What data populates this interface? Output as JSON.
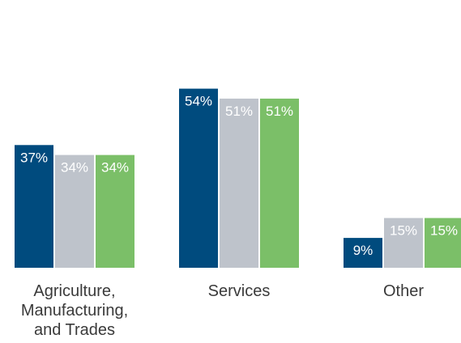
{
  "chart_data": {
    "type": "bar",
    "categories": [
      [
        "Agriculture,",
        "Manufacturing,",
        "and Trades"
      ],
      [
        "Services"
      ],
      [
        "Other"
      ]
    ],
    "series": [
      {
        "values": [
          37,
          54,
          9
        ],
        "labels": [
          "37%",
          "54%",
          "9%"
        ],
        "color": "#004b7e"
      },
      {
        "values": [
          34,
          51,
          15
        ],
        "labels": [
          "34%",
          "51%",
          "15%"
        ],
        "color": "#bec3cb"
      },
      {
        "values": [
          34,
          51,
          15
        ],
        "labels": [
          "34%",
          "51%",
          "15%"
        ],
        "color": "#7bbf68"
      }
    ],
    "ylim": [
      0,
      60
    ],
    "grid": false,
    "legend": "none"
  }
}
